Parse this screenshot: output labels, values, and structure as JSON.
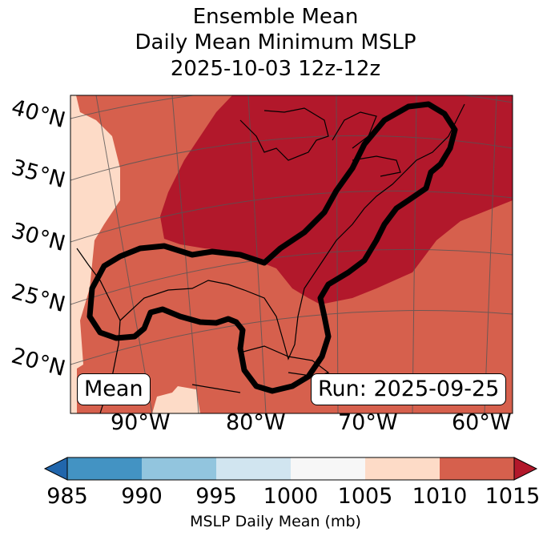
{
  "title": {
    "line1": "Ensemble Mean",
    "line2": "Daily Mean Minimum MSLP",
    "line3": "2025-10-03 12z-12z"
  },
  "map": {
    "latitude_labels": [
      "40°N",
      "35°N",
      "30°N",
      "25°N",
      "20°N"
    ],
    "longitude_labels": [
      "90°W",
      "80°W",
      "70°W",
      "60°W"
    ],
    "mean_box": "Mean",
    "run_box": "Run: 2025-09-25"
  },
  "colorbar": {
    "ticks": [
      "985",
      "990",
      "995",
      "1000",
      "1005",
      "1010",
      "1015"
    ],
    "label": "MSLP Daily Mean (mb)",
    "colors": [
      "#2166ac",
      "#4393c3",
      "#92c5de",
      "#d1e5f0",
      "#f7f7f7",
      "#fddbc7",
      "#d6604d",
      "#b2182b"
    ]
  },
  "legend_colors": {
    "band_1005_1010": "#fddbc7",
    "band_1010_1015": "#d6604d",
    "band_above_1015": "#b2182b",
    "contour": "#000000"
  }
}
